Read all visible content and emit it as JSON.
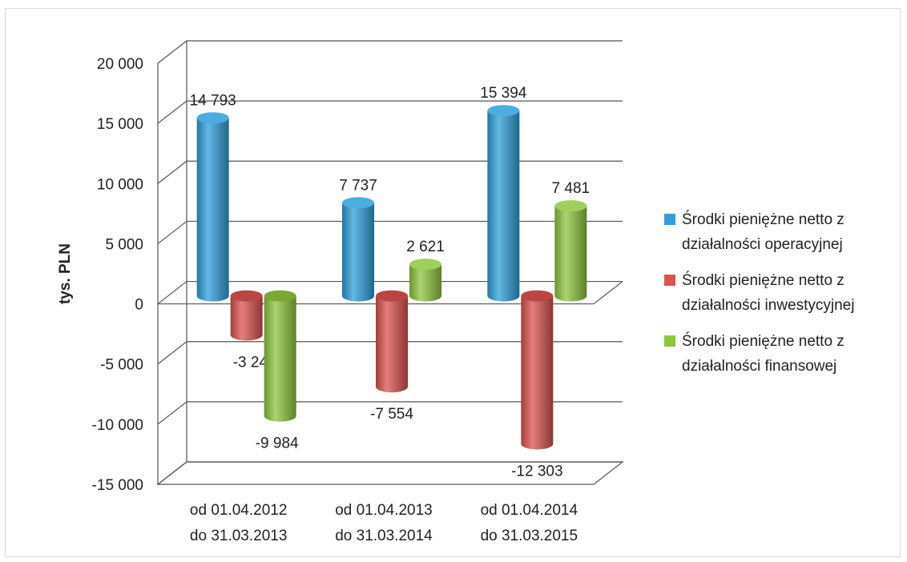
{
  "chart_data": {
    "type": "bar",
    "style": "3d-cylinder",
    "categories": [
      [
        "od 01.04.2012",
        "do 31.03.2013"
      ],
      [
        "od 01.04.2013",
        "do 31.03.2014"
      ],
      [
        "od 01.04.2014",
        "do 31.03.2015"
      ]
    ],
    "series": [
      {
        "name": "Środki pieniężne netto z działalności operacyjnej",
        "name_lines": [
          "Środki pieniężne netto z",
          "działalności operacyjnej"
        ],
        "color": "#2e9fd9",
        "values": [
          14793,
          7737,
          15394
        ],
        "labels": [
          "14 793",
          "7 737",
          "15 394"
        ]
      },
      {
        "name": "Środki pieniężne netto z działalności inwestycyjnej",
        "name_lines": [
          "Środki pieniężne netto z",
          "działalności inwestycyjnej"
        ],
        "color": "#d9534f",
        "values": [
          -3246,
          -7554,
          -12303
        ],
        "labels": [
          "-3 246",
          "-7 554",
          "-12 303"
        ]
      },
      {
        "name": "Środki pieniężne netto z działalności finansowej",
        "name_lines": [
          "Środki pieniężne netto z",
          "działalności finansowej"
        ],
        "color": "#8ec63f",
        "values": [
          -9984,
          2621,
          7481
        ],
        "labels": [
          "-9 984",
          "2 621",
          "7 481"
        ]
      }
    ],
    "ylabel": "tys. PLN",
    "ylim": [
      -15000,
      20000
    ],
    "yticks": [
      20000,
      15000,
      10000,
      5000,
      0,
      -5000,
      -10000,
      -15000
    ],
    "ytick_labels": [
      "20 000",
      "15 000",
      "10 000",
      "5 000",
      "0",
      "-5 000",
      "-10 000",
      "-15 000"
    ],
    "grid": true,
    "legend_position": "right"
  }
}
